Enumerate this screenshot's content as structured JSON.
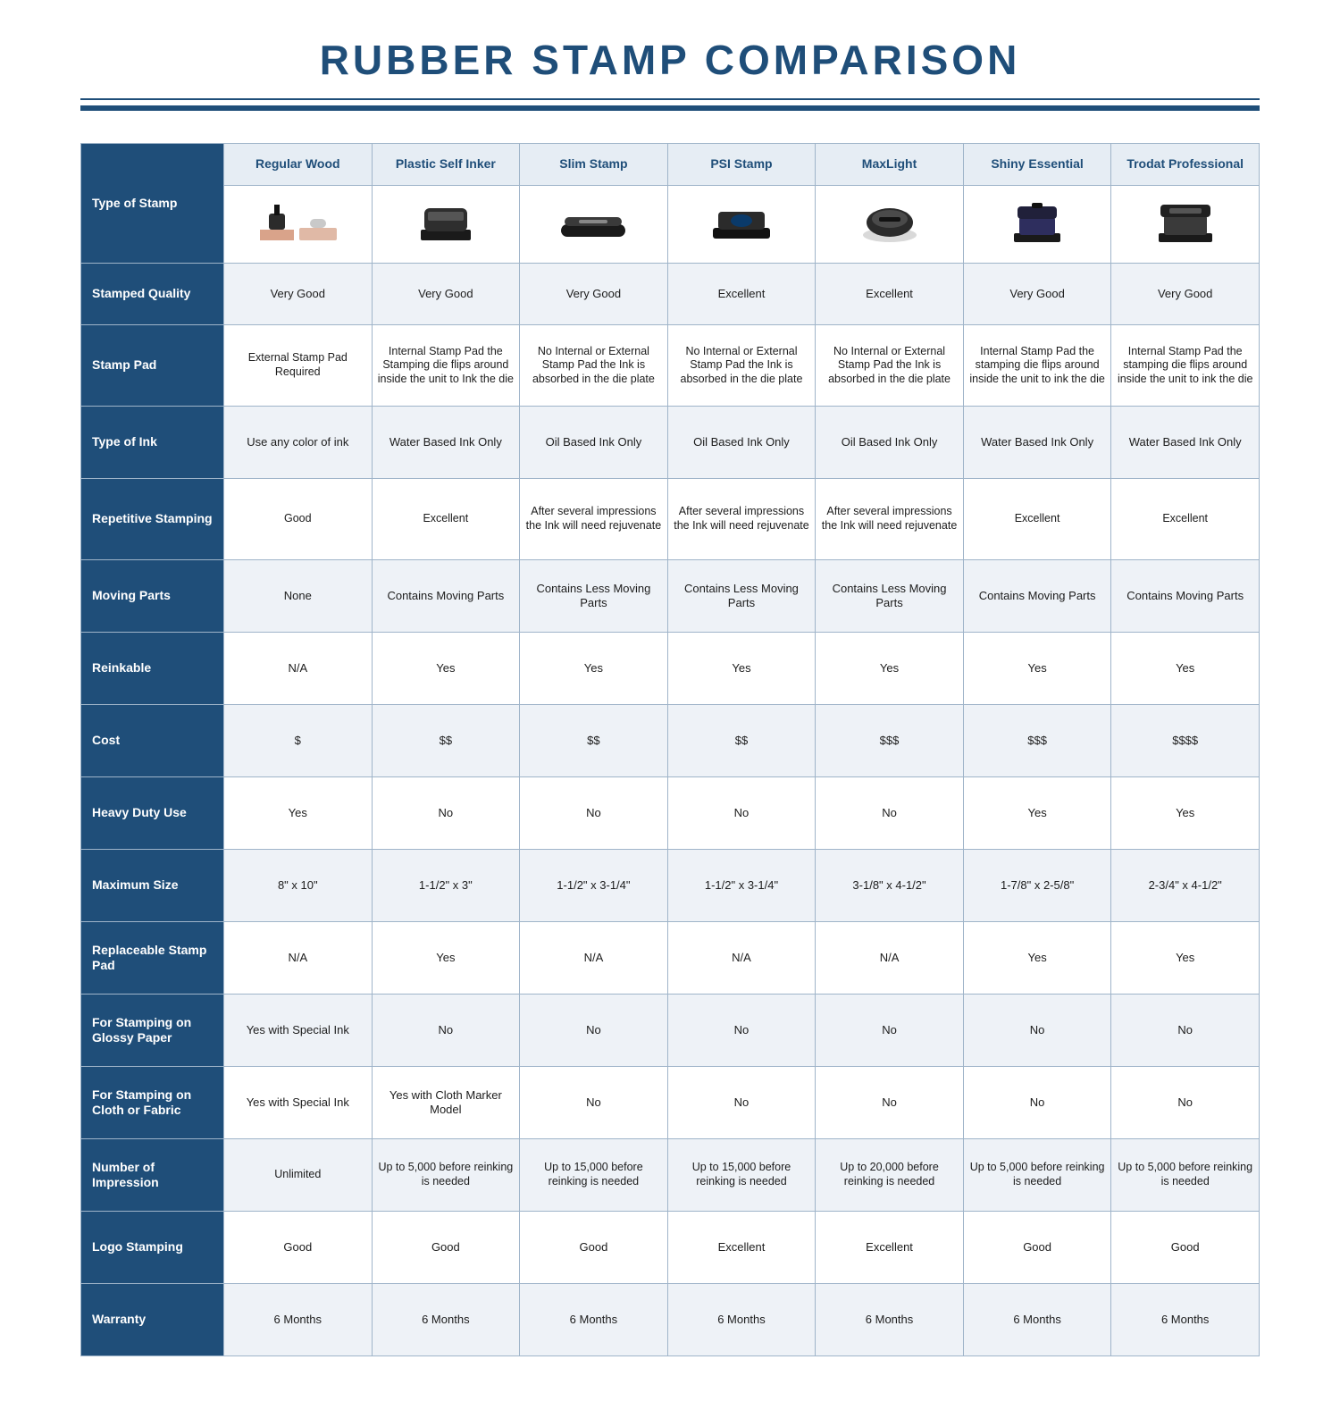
{
  "title": "RUBBER STAMP COMPARISON",
  "colors": {
    "brand": "#1f4e79",
    "band": "#eef2f7",
    "head_bg": "#e6edf4",
    "border": "#9fb4c9",
    "text": "#1c1c1c",
    "white": "#ffffff"
  },
  "row_header_label": "Type of Stamp",
  "columns": [
    {
      "label": "Regular Wood",
      "icon": "stamp-wood"
    },
    {
      "label": "Plastic Self Inker",
      "icon": "stamp-self"
    },
    {
      "label": "Slim Stamp",
      "icon": "stamp-slim"
    },
    {
      "label": "PSI Stamp",
      "icon": "stamp-psi"
    },
    {
      "label": "MaxLight",
      "icon": "stamp-max"
    },
    {
      "label": "Shiny Essential",
      "icon": "stamp-shiny"
    },
    {
      "label": "Trodat Professional",
      "icon": "stamp-trodat"
    }
  ],
  "rows": [
    {
      "label": "Stamped Quality",
      "band": true,
      "height": "h-med",
      "cells": [
        "Very Good",
        "Very Good",
        "Very Good",
        "Excellent",
        "Excellent",
        "Very Good",
        "Very Good"
      ]
    },
    {
      "label": "Stamp Pad",
      "band": false,
      "height": "h-xl",
      "small": true,
      "cells": [
        "External Stamp Pad Required",
        "Internal Stamp Pad the Stamping die flips around inside the unit to Ink the die",
        "No Internal or External Stamp Pad the Ink is absorbed in the die plate",
        "No Internal or External Stamp Pad the Ink is absorbed in the die plate",
        "No Internal or External Stamp Pad the Ink is absorbed in the die plate",
        "Internal Stamp Pad the stamping die flips around inside the unit to ink the die",
        "Internal Stamp Pad the stamping die flips around inside the unit to ink the die"
      ]
    },
    {
      "label": "Type of Ink",
      "band": true,
      "height": "h-tall",
      "cells": [
        "Use any color of ink",
        "Water Based Ink Only",
        "Oil Based Ink Only",
        "Oil Based Ink Only",
        "Oil Based Ink Only",
        "Water Based Ink Only",
        "Water Based Ink Only"
      ]
    },
    {
      "label": "Repetitive Stamping",
      "band": false,
      "height": "h-xl",
      "small": true,
      "cells": [
        "Good",
        "Excellent",
        "After several impressions the Ink will need rejuvenate",
        "After several impressions the Ink will need rejuvenate",
        "After several impressions the Ink will need rejuvenate",
        "Excellent",
        "Excellent"
      ]
    },
    {
      "label": "Moving Parts",
      "band": true,
      "height": "h-tall",
      "cells": [
        "None",
        "Contains Moving Parts",
        "Contains Less Moving Parts",
        "Contains Less Moving Parts",
        "Contains Less Moving Parts",
        "Contains Moving Parts",
        "Contains Moving Parts"
      ]
    },
    {
      "label": "Reinkable",
      "band": false,
      "height": "h-tall",
      "cells": [
        "N/A",
        "Yes",
        "Yes",
        "Yes",
        "Yes",
        "Yes",
        "Yes"
      ]
    },
    {
      "label": "Cost",
      "band": true,
      "height": "h-tall",
      "cells": [
        "$",
        "$$",
        "$$",
        "$$",
        "$$$",
        "$$$",
        "$$$$"
      ]
    },
    {
      "label": "Heavy Duty Use",
      "band": false,
      "height": "h-tall",
      "cells": [
        "Yes",
        "No",
        "No",
        "No",
        "No",
        "Yes",
        "Yes"
      ]
    },
    {
      "label": "Maximum Size",
      "band": true,
      "height": "h-tall",
      "cells": [
        "8\" x 10\"",
        "1-1/2\" x 3\"",
        "1-1/2\" x 3-1/4\"",
        "1-1/2\" x 3-1/4\"",
        "3-1/8\" x 4-1/2\"",
        "1-7/8\" x 2-5/8\"",
        "2-3/4\" x 4-1/2\""
      ]
    },
    {
      "label": "Replaceable Stamp Pad",
      "band": false,
      "height": "h-tall",
      "cells": [
        "N/A",
        "Yes",
        "N/A",
        "N/A",
        "N/A",
        "Yes",
        "Yes"
      ]
    },
    {
      "label": "For Stamping on Glossy Paper",
      "band": true,
      "height": "h-tall",
      "cells": [
        "Yes with Special Ink",
        "No",
        "No",
        "No",
        "No",
        "No",
        "No"
      ]
    },
    {
      "label": "For Stamping on Cloth or Fabric",
      "band": false,
      "height": "h-tall",
      "cells": [
        "Yes with Special Ink",
        "Yes with Cloth Marker Model",
        "No",
        "No",
        "No",
        "No",
        "No"
      ]
    },
    {
      "label": "Number of Impression",
      "band": true,
      "height": "h-tall",
      "small": true,
      "cells": [
        "Unlimited",
        "Up to 5,000 before reinking is needed",
        "Up to 15,000 before reinking is needed",
        "Up to 15,000 before reinking is needed",
        "Up to 20,000 before reinking is needed",
        "Up to 5,000 before reinking is needed",
        "Up to 5,000 before reinking is needed"
      ]
    },
    {
      "label": "Logo Stamping",
      "band": false,
      "height": "h-tall",
      "cells": [
        "Good",
        "Good",
        "Good",
        "Excellent",
        "Excellent",
        "Good",
        "Good"
      ]
    },
    {
      "label": "Warranty",
      "band": true,
      "height": "h-tall",
      "cells": [
        "6 Months",
        "6 Months",
        "6 Months",
        "6 Months",
        "6 Months",
        "6 Months",
        "6 Months"
      ]
    }
  ]
}
